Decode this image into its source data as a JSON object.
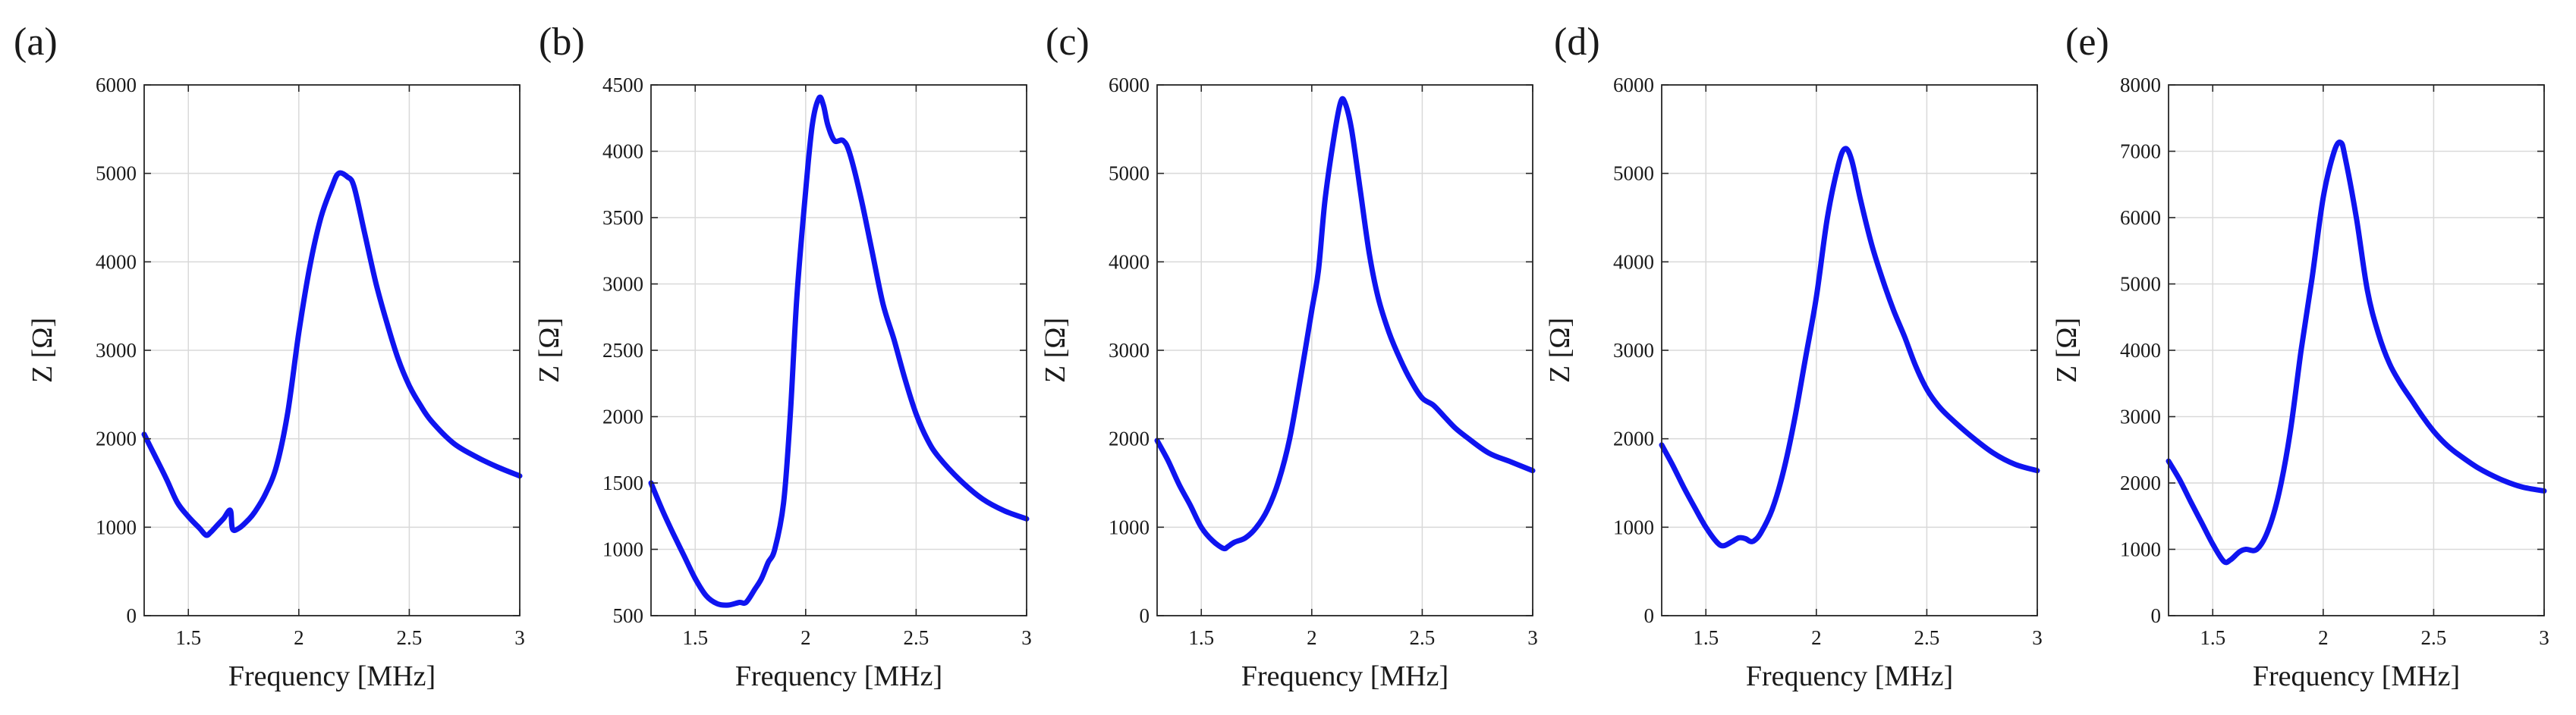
{
  "figure": {
    "series_color": "#0f14f0"
  },
  "chart_data": [
    {
      "panel": "(a)",
      "type": "line",
      "xlabel": "Frequency [MHz]",
      "ylabel": "Z [Ω]",
      "xlim": [
        1.3,
        3
      ],
      "ylim": [
        0,
        6000
      ],
      "grid": true,
      "xticks": [
        1.5,
        2,
        2.5,
        3
      ],
      "xtick_labels": [
        "1.5",
        "2",
        "2.5",
        "3"
      ],
      "yticks": [
        0,
        1000,
        2000,
        3000,
        4000,
        5000,
        6000
      ],
      "ytick_labels": [
        "0",
        "1000",
        "2000",
        "3000",
        "4000",
        "5000",
        "6000"
      ],
      "series": [
        {
          "name": "Z",
          "points": [
            [
              1.3,
              2050
            ],
            [
              1.35,
              1800
            ],
            [
              1.4,
              1550
            ],
            [
              1.45,
              1280
            ],
            [
              1.5,
              1120
            ],
            [
              1.55,
              990
            ],
            [
              1.58,
              910
            ],
            [
              1.6,
              940
            ],
            [
              1.63,
              1020
            ],
            [
              1.66,
              1100
            ],
            [
              1.69,
              1190
            ],
            [
              1.7,
              980
            ],
            [
              1.73,
              990
            ],
            [
              1.77,
              1080
            ],
            [
              1.8,
              1170
            ],
            [
              1.85,
              1380
            ],
            [
              1.9,
              1700
            ],
            [
              1.95,
              2300
            ],
            [
              2,
              3200
            ],
            [
              2.05,
              3950
            ],
            [
              2.1,
              4500
            ],
            [
              2.15,
              4850
            ],
            [
              2.18,
              5000
            ],
            [
              2.22,
              4960
            ],
            [
              2.25,
              4850
            ],
            [
              2.3,
              4300
            ],
            [
              2.35,
              3750
            ],
            [
              2.4,
              3300
            ],
            [
              2.45,
              2900
            ],
            [
              2.5,
              2600
            ],
            [
              2.55,
              2380
            ],
            [
              2.6,
              2200
            ],
            [
              2.7,
              1950
            ],
            [
              2.8,
              1800
            ],
            [
              2.9,
              1680
            ],
            [
              3,
              1580
            ]
          ]
        }
      ]
    },
    {
      "panel": "(b)",
      "type": "line",
      "xlabel": "Frequency [MHz]",
      "ylabel": "Z [Ω]",
      "xlim": [
        1.3,
        3
      ],
      "ylim": [
        500,
        4500
      ],
      "grid": true,
      "xticks": [
        1.5,
        2,
        2.5,
        3
      ],
      "xtick_labels": [
        "1.5",
        "2",
        "2.5",
        "3"
      ],
      "yticks": [
        500,
        1000,
        1500,
        2000,
        2500,
        3000,
        3500,
        4000,
        4500
      ],
      "ytick_labels": [
        "500",
        "1000",
        "1500",
        "2000",
        "2500",
        "3000",
        "3500",
        "4000",
        "4500"
      ],
      "series": [
        {
          "name": "Z",
          "points": [
            [
              1.3,
              1500
            ],
            [
              1.35,
              1300
            ],
            [
              1.4,
              1120
            ],
            [
              1.45,
              950
            ],
            [
              1.5,
              780
            ],
            [
              1.55,
              650
            ],
            [
              1.6,
              590
            ],
            [
              1.65,
              580
            ],
            [
              1.7,
              600
            ],
            [
              1.73,
              600
            ],
            [
              1.77,
              700
            ],
            [
              1.8,
              780
            ],
            [
              1.83,
              900
            ],
            [
              1.86,
              1000
            ],
            [
              1.9,
              1350
            ],
            [
              1.93,
              2000
            ],
            [
              1.96,
              2900
            ],
            [
              2,
              3700
            ],
            [
              2.03,
              4200
            ],
            [
              2.06,
              4400
            ],
            [
              2.08,
              4350
            ],
            [
              2.1,
              4200
            ],
            [
              2.13,
              4080
            ],
            [
              2.17,
              4080
            ],
            [
              2.2,
              3980
            ],
            [
              2.25,
              3650
            ],
            [
              2.3,
              3250
            ],
            [
              2.35,
              2850
            ],
            [
              2.4,
              2580
            ],
            [
              2.45,
              2280
            ],
            [
              2.5,
              2020
            ],
            [
              2.55,
              1830
            ],
            [
              2.6,
              1700
            ],
            [
              2.7,
              1520
            ],
            [
              2.8,
              1380
            ],
            [
              2.9,
              1290
            ],
            [
              3,
              1230
            ]
          ]
        }
      ]
    },
    {
      "panel": "(c)",
      "type": "line",
      "xlabel": "Frequency [MHz]",
      "ylabel": "Z [Ω]",
      "xlim": [
        1.3,
        3
      ],
      "ylim": [
        0,
        6000
      ],
      "grid": true,
      "xticks": [
        1.5,
        2,
        2.5,
        3
      ],
      "xtick_labels": [
        "1.5",
        "2",
        "2.5",
        "3"
      ],
      "yticks": [
        0,
        1000,
        2000,
        3000,
        4000,
        5000,
        6000
      ],
      "ytick_labels": [
        "0",
        "1000",
        "2000",
        "3000",
        "4000",
        "5000",
        "6000"
      ],
      "series": [
        {
          "name": "Z",
          "points": [
            [
              1.3,
              1980
            ],
            [
              1.35,
              1750
            ],
            [
              1.4,
              1480
            ],
            [
              1.45,
              1250
            ],
            [
              1.5,
              1000
            ],
            [
              1.55,
              850
            ],
            [
              1.6,
              760
            ],
            [
              1.62,
              780
            ],
            [
              1.65,
              830
            ],
            [
              1.7,
              880
            ],
            [
              1.75,
              1000
            ],
            [
              1.8,
              1200
            ],
            [
              1.85,
              1520
            ],
            [
              1.9,
              2000
            ],
            [
              1.95,
              2700
            ],
            [
              2,
              3450
            ],
            [
              2.03,
              3900
            ],
            [
              2.06,
              4700
            ],
            [
              2.1,
              5400
            ],
            [
              2.13,
              5800
            ],
            [
              2.15,
              5800
            ],
            [
              2.18,
              5500
            ],
            [
              2.22,
              4800
            ],
            [
              2.26,
              4100
            ],
            [
              2.3,
              3600
            ],
            [
              2.35,
              3200
            ],
            [
              2.4,
              2900
            ],
            [
              2.45,
              2650
            ],
            [
              2.5,
              2460
            ],
            [
              2.55,
              2380
            ],
            [
              2.6,
              2250
            ],
            [
              2.65,
              2120
            ],
            [
              2.7,
              2020
            ],
            [
              2.8,
              1840
            ],
            [
              2.9,
              1740
            ],
            [
              3,
              1640
            ]
          ]
        }
      ]
    },
    {
      "panel": "(d)",
      "type": "line",
      "xlabel": "Frequency [MHz]",
      "ylabel": "Z [Ω]",
      "xlim": [
        1.3,
        3
      ],
      "ylim": [
        0,
        6000
      ],
      "grid": true,
      "xticks": [
        1.5,
        2,
        2.5,
        3
      ],
      "xtick_labels": [
        "1.5",
        "2",
        "2.5",
        "3"
      ],
      "yticks": [
        0,
        1000,
        2000,
        3000,
        4000,
        5000,
        6000
      ],
      "ytick_labels": [
        "0",
        "1000",
        "2000",
        "3000",
        "4000",
        "5000",
        "6000"
      ],
      "series": [
        {
          "name": "Z",
          "points": [
            [
              1.3,
              1930
            ],
            [
              1.35,
              1700
            ],
            [
              1.4,
              1450
            ],
            [
              1.45,
              1220
            ],
            [
              1.5,
              1000
            ],
            [
              1.55,
              830
            ],
            [
              1.58,
              790
            ],
            [
              1.62,
              840
            ],
            [
              1.65,
              880
            ],
            [
              1.68,
              870
            ],
            [
              1.7,
              840
            ],
            [
              1.72,
              850
            ],
            [
              1.75,
              940
            ],
            [
              1.8,
              1200
            ],
            [
              1.85,
              1620
            ],
            [
              1.9,
              2200
            ],
            [
              1.95,
              2900
            ],
            [
              2,
              3600
            ],
            [
              2.05,
              4500
            ],
            [
              2.1,
              5100
            ],
            [
              2.13,
              5280
            ],
            [
              2.16,
              5150
            ],
            [
              2.2,
              4700
            ],
            [
              2.25,
              4200
            ],
            [
              2.3,
              3800
            ],
            [
              2.35,
              3450
            ],
            [
              2.4,
              3150
            ],
            [
              2.45,
              2820
            ],
            [
              2.5,
              2560
            ],
            [
              2.55,
              2380
            ],
            [
              2.6,
              2250
            ],
            [
              2.7,
              2030
            ],
            [
              2.8,
              1840
            ],
            [
              2.9,
              1710
            ],
            [
              3,
              1640
            ]
          ]
        }
      ]
    },
    {
      "panel": "(e)",
      "type": "line",
      "xlabel": "Frequency [MHz]",
      "ylabel": "Z [Ω]",
      "xlim": [
        1.3,
        3
      ],
      "ylim": [
        0,
        8000
      ],
      "grid": true,
      "xticks": [
        1.5,
        2,
        2.5,
        3
      ],
      "xtick_labels": [
        "1.5",
        "2",
        "2.5",
        "3"
      ],
      "yticks": [
        0,
        1000,
        2000,
        3000,
        4000,
        5000,
        6000,
        7000,
        8000
      ],
      "ytick_labels": [
        "0",
        "1000",
        "2000",
        "3000",
        "4000",
        "5000",
        "6000",
        "7000",
        "8000"
      ],
      "series": [
        {
          "name": "Z",
          "points": [
            [
              1.3,
              2330
            ],
            [
              1.35,
              2050
            ],
            [
              1.4,
              1720
            ],
            [
              1.45,
              1400
            ],
            [
              1.5,
              1080
            ],
            [
              1.55,
              820
            ],
            [
              1.58,
              840
            ],
            [
              1.62,
              960
            ],
            [
              1.65,
              1000
            ],
            [
              1.7,
              1000
            ],
            [
              1.75,
              1280
            ],
            [
              1.8,
              1850
            ],
            [
              1.85,
              2750
            ],
            [
              1.9,
              4000
            ],
            [
              1.95,
              5100
            ],
            [
              2,
              6300
            ],
            [
              2.05,
              7000
            ],
            [
              2.08,
              7130
            ],
            [
              2.1,
              6900
            ],
            [
              2.15,
              6000
            ],
            [
              2.2,
              4900
            ],
            [
              2.25,
              4250
            ],
            [
              2.3,
              3800
            ],
            [
              2.35,
              3500
            ],
            [
              2.4,
              3250
            ],
            [
              2.45,
              3000
            ],
            [
              2.5,
              2780
            ],
            [
              2.55,
              2600
            ],
            [
              2.6,
              2460
            ],
            [
              2.7,
              2230
            ],
            [
              2.8,
              2060
            ],
            [
              2.9,
              1940
            ],
            [
              3,
              1880
            ]
          ]
        }
      ]
    }
  ]
}
